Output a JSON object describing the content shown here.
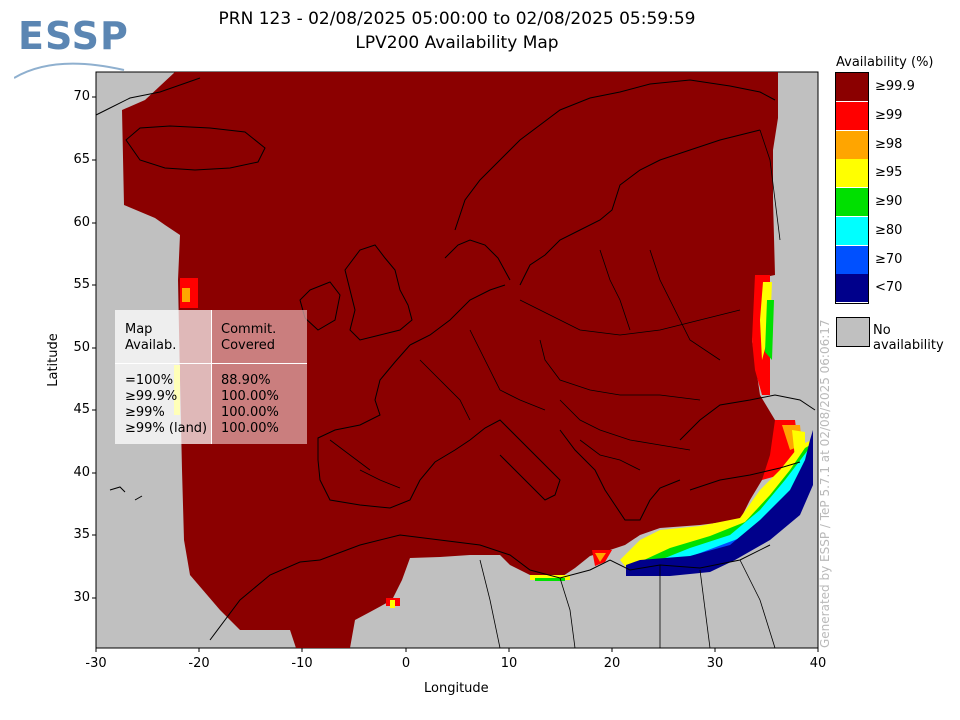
{
  "header": {
    "title_line1": "PRN 123 - 02/08/2025 05:00:00 to 02/08/2025 05:59:59",
    "title_line2": "LPV200 Availability Map"
  },
  "logo": {
    "text": "ESSP"
  },
  "axes": {
    "x_label": "Longitude",
    "y_label": "Latitude",
    "x_ticks": [
      "-30",
      "-20",
      "-10",
      "0",
      "10",
      "20",
      "30",
      "40"
    ],
    "y_ticks": [
      "70",
      "65",
      "60",
      "55",
      "50",
      "45",
      "40",
      "35",
      "30"
    ],
    "x_range": [
      -30,
      40
    ],
    "y_range": [
      26,
      72
    ]
  },
  "legend": {
    "title": "Availability (%)",
    "items": [
      {
        "label": "≥99.9",
        "color": "#8b0000"
      },
      {
        "label": "≥99",
        "color": "#ff0000"
      },
      {
        "label": "≥98",
        "color": "#ffa500"
      },
      {
        "label": "≥95",
        "color": "#ffff00"
      },
      {
        "label": "≥90",
        "color": "#00e000"
      },
      {
        "label": "≥80",
        "color": "#00ffff"
      },
      {
        "label": "≥70",
        "color": "#0050ff"
      },
      {
        "label": "<70",
        "color": "#00008b"
      }
    ],
    "no_availability_label": "No availability",
    "no_availability_color": "#c0c0c0"
  },
  "stats_table": {
    "header_col1_line1": "Map",
    "header_col1_line2": "Availab.",
    "header_col2_line1": "Commit.",
    "header_col2_line2": "Covered",
    "rows": [
      {
        "map": "=100%",
        "covered": "88.90%"
      },
      {
        "map": "≥99.9%",
        "covered": "100.00%"
      },
      {
        "map": "≥99%",
        "covered": "100.00%"
      },
      {
        "map": "≥99% (land)",
        "covered": "100.00%"
      }
    ]
  },
  "footer": {
    "generated_by": "Generated by ESSP / TeP 5.7.1 at 02/08/2025 06:06:17"
  },
  "colors": {
    "background_map": "#c0c0c0",
    "coverage": "#8b0000",
    "coastline": "#000000"
  }
}
